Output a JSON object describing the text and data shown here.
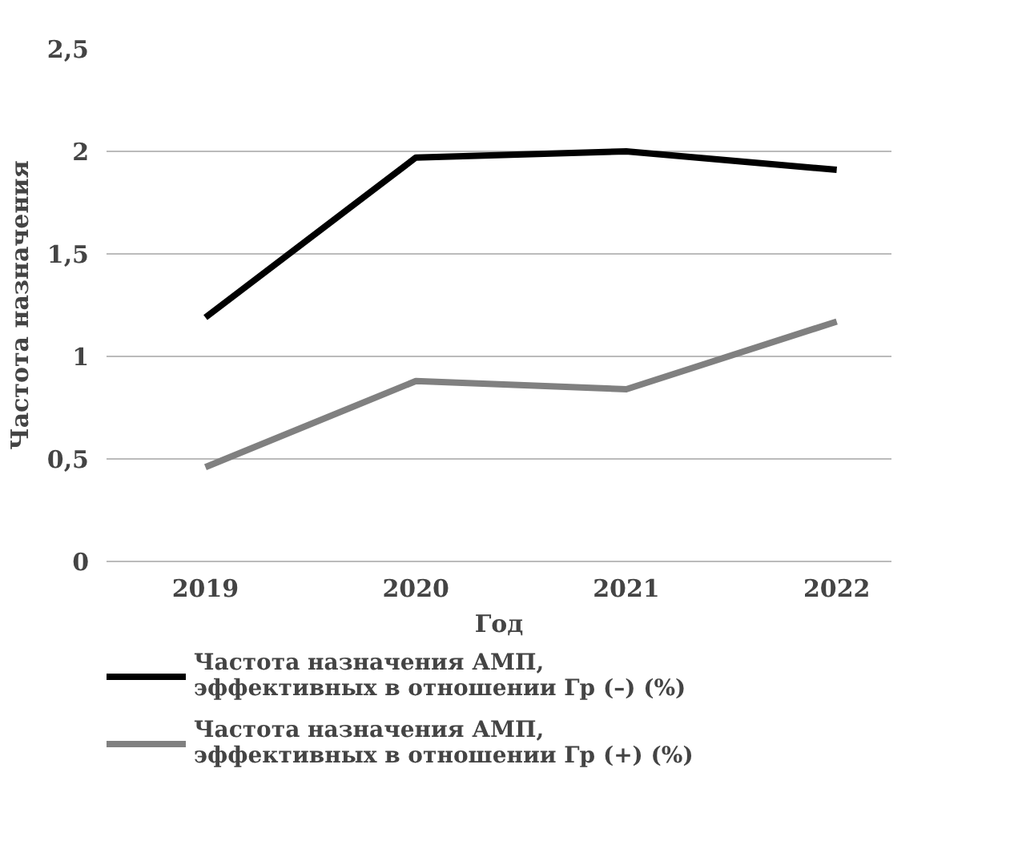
{
  "chart_data": {
    "type": "line",
    "xlabel": "Год",
    "ylabel": "Частота назначения",
    "categories": [
      "2019",
      "2020",
      "2021",
      "2022"
    ],
    "series": [
      {
        "name": "Частота назначения АМП, эффективных в отношении Гр (–) (%)",
        "color": "#000000",
        "values": [
          1.19,
          1.97,
          2.0,
          1.91
        ]
      },
      {
        "name": "Частота назначения АМП, эффективных в отношении Гр (+) (%)",
        "color": "#808080",
        "values": [
          0.46,
          0.88,
          0.84,
          1.17
        ]
      }
    ],
    "ylim": [
      0,
      2.5
    ],
    "yticks": [
      0,
      {
        "value": 0.5,
        "label": "0,5"
      },
      1,
      {
        "value": 1.5,
        "label": "1,5"
      },
      2,
      {
        "value": 2.5,
        "label": "2,5"
      }
    ],
    "grid": "y",
    "legend": "bottom",
    "marker": "none",
    "line_style": "solid"
  }
}
